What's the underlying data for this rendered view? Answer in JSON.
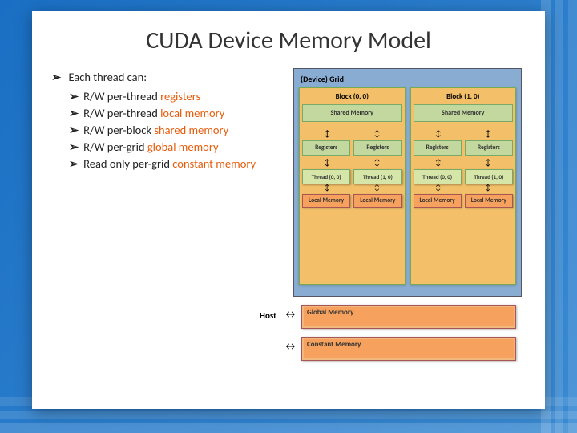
{
  "title": "CUDA Device Memory Model",
  "bullets": {
    "header": "Each thread can:",
    "items": [
      {
        "pre": "R/W per-thread ",
        "kw": "registers",
        "cls": "kw-reg"
      },
      {
        "pre": "R/W per-thread ",
        "kw": "local memory",
        "cls": "kw-local"
      },
      {
        "pre": "R/W per-block ",
        "kw": "shared memory",
        "cls": "kw-shared"
      },
      {
        "pre": "R/W per-grid ",
        "kw": "global memory",
        "cls": "kw-global"
      },
      {
        "pre": "Read only per-grid ",
        "kw": "constant memory",
        "cls": "kw-const"
      }
    ]
  },
  "diagram": {
    "grid_title": "(Device) Grid",
    "host_label": "Host",
    "global_memory": "Global Memory",
    "constant_memory": "Constant Memory",
    "arrow_glyph": "↕",
    "harrow_glyph": "↔",
    "blocks": [
      {
        "title": "Block (0, 0)",
        "shared": "Shared Memory",
        "regs": [
          "Registers",
          "Registers"
        ],
        "threads": [
          "Thread (0, 0)",
          "Thread (1, 0)"
        ],
        "locals": [
          "Local Memory",
          "Local Memory"
        ]
      },
      {
        "title": "Block (1, 0)",
        "shared": "Shared Memory",
        "regs": [
          "Registers",
          "Registers"
        ],
        "threads": [
          "Thread (0, 0)",
          "Thread (1, 0)"
        ],
        "locals": [
          "Local Memory",
          "Local Memory"
        ]
      }
    ],
    "colors": {
      "page_bg": "#2a7cc8",
      "card_bg": "#ffffff",
      "grid_bg": "#89add2",
      "block_bg": "#f3c069",
      "green_box": "#c2d89e",
      "thread_box": "#d5e6a8",
      "orange_box": "#f6a15d",
      "keyword": "#e85c0c"
    }
  }
}
